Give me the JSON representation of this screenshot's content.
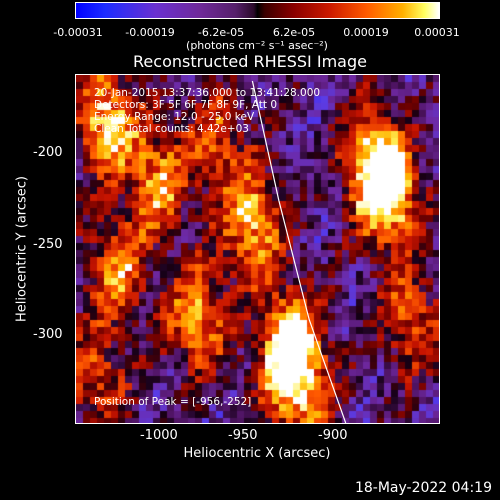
{
  "colorbar": {
    "tick_labels": [
      "-0.00031",
      "-0.00019",
      "-6.2e-05",
      "6.2e-05",
      "0.00019",
      "0.00031"
    ],
    "unit_label": "(photons cm⁻² s⁻¹ asec⁻²)",
    "range": [
      -0.00031,
      0.00031
    ]
  },
  "chart_data": {
    "type": "heatmap",
    "title": "Reconstructed RHESSI Image",
    "xlabel": "Heliocentric X (arcsec)",
    "ylabel": "Heliocentric Y (arcsec)",
    "xlim": [
      -1045,
      -865
    ],
    "ylim": [
      -353,
      -177
    ],
    "x_ticks": [
      -1000,
      -950,
      -900
    ],
    "y_ticks": [
      -200,
      -250,
      -300
    ],
    "info_lines": [
      "20-Jan-2015 13:37:36.000 to 13:41:28.000",
      "Detectors: 3F 5F 6F 7F 8F 9F, Att 0",
      "Energy Range: 12.0 - 25.0 keV",
      "Clean    Total counts: 4.42e+03"
    ],
    "peak_text": "Position of Peak = [-956,-252]",
    "peak_position": [
      -956,
      -252
    ],
    "bright_regions": [
      {
        "x": -1030,
        "y": -200,
        "level": 0.9
      },
      {
        "x": -1005,
        "y": -230,
        "level": 0.75
      },
      {
        "x": -975,
        "y": -210,
        "level": 0.55
      },
      {
        "x": -958,
        "y": -252,
        "level": 0.85
      },
      {
        "x": -985,
        "y": -300,
        "level": 0.8
      },
      {
        "x": -940,
        "y": -310,
        "level": 0.95
      },
      {
        "x": -935,
        "y": -335,
        "level": 0.8
      },
      {
        "x": -898,
        "y": -220,
        "level": 0.9
      },
      {
        "x": -890,
        "y": -240,
        "level": 0.85
      },
      {
        "x": -880,
        "y": -300,
        "level": 0.6
      },
      {
        "x": -1025,
        "y": -275,
        "level": 0.7
      },
      {
        "x": -1035,
        "y": -330,
        "level": 0.55
      }
    ],
    "limb_curve": [
      [
        -958,
        -180
      ],
      [
        -945,
        -240
      ],
      [
        -930,
        -300
      ],
      [
        -912,
        -352
      ]
    ]
  },
  "footer": {
    "date": "18-May-2022 04:19"
  }
}
